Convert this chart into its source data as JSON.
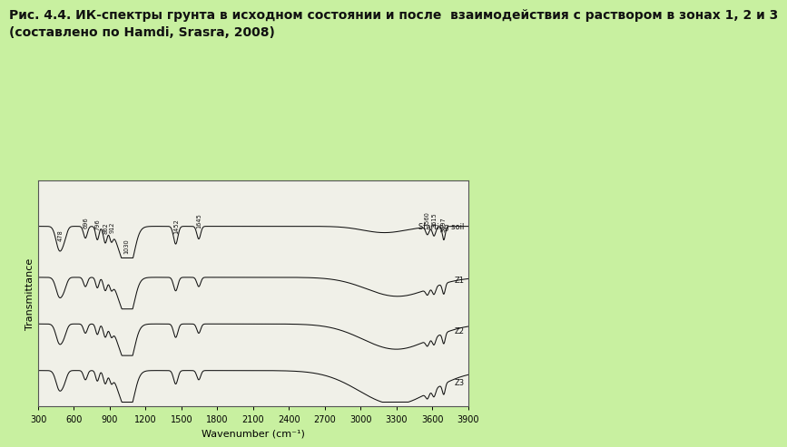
{
  "background_color": "#c8f0a0",
  "plot_bg_color": "#f0f0e8",
  "title_text": "Рис. 4.4. ИК-спектры грунта в исходном состоянии и после  взаимодействия с раствором в зонах 1, 2 и 3\n(составлено по Hamdi, Srasra, 2008)",
  "xlabel": "Wavenumber (cm⁻¹)",
  "ylabel": "Transmittance",
  "xmin": 300,
  "xmax": 3900,
  "xticks": [
    300,
    600,
    900,
    1200,
    1500,
    1800,
    2100,
    2400,
    2700,
    3000,
    3300,
    3600,
    3900
  ],
  "line_color": "#111111",
  "border_color": "#888888"
}
